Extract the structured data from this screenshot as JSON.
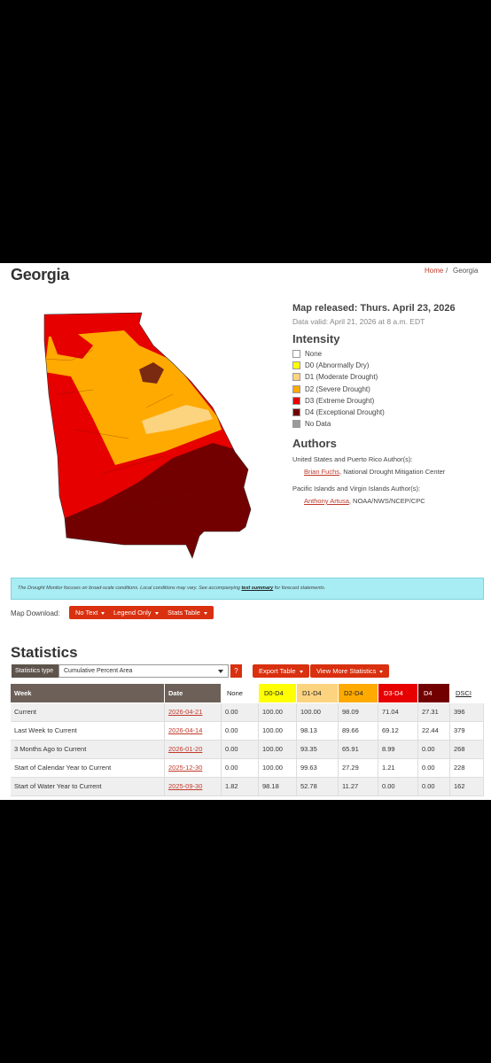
{
  "header": {
    "title": "Georgia",
    "breadcrumb": [
      "Home",
      "Georgia"
    ]
  },
  "map_info": {
    "released": "Map released: Thurs. April 23, 2026",
    "valid": "Data valid: April 21, 2026 at 8 a.m. EDT"
  },
  "legend": {
    "title": "Intensity",
    "items": [
      {
        "label": "None",
        "color": "#ffffff"
      },
      {
        "label": "D0 (Abnormally Dry)",
        "color": "#ffff00"
      },
      {
        "label": "D1 (Moderate Drought)",
        "color": "#fcd37f"
      },
      {
        "label": "D2 (Severe Drought)",
        "color": "#ffaa00"
      },
      {
        "label": "D3 (Extreme Drought)",
        "color": "#e60000"
      },
      {
        "label": "D4 (Exceptional Drought)",
        "color": "#730000"
      },
      {
        "label": "No Data",
        "color": "#9b9b9b"
      }
    ]
  },
  "authors": {
    "title": "Authors",
    "groups": [
      {
        "heading": "United States and Puerto Rico Author(s):",
        "name": "Brian Fuchs",
        "affiliation": ", National Drought Mitigation Center"
      },
      {
        "heading": "Pacific Islands and Virgin Islands Author(s):",
        "name": "Anthony Artusa",
        "affiliation": ", NOAA/NWS/NCEP/CPC"
      }
    ]
  },
  "notice": {
    "text": "The Drought Monitor focuses on broad-scale conditions. Local conditions may vary. See accompanying",
    "link": "text summary",
    "suffix": "for forecast statements."
  },
  "download": {
    "label": "Map Download:",
    "buttons": [
      "No Text",
      "Legend Only",
      "Stats Table"
    ]
  },
  "statistics": {
    "title": "Statistics",
    "type_label": "Statistics type",
    "type_value": "Cumulative Percent Area",
    "help": "?",
    "buttons": [
      "Export Table",
      "View More Statistics"
    ],
    "table": {
      "columns": [
        {
          "label": "Week",
          "color": "#6d6058"
        },
        {
          "label": "Date",
          "color": "#6d6058"
        },
        {
          "label": "None",
          "color": "#ffffff"
        },
        {
          "label": "D0-D4",
          "color": "#ffff00"
        },
        {
          "label": "D1-D4",
          "color": "#fcd37f"
        },
        {
          "label": "D2-D4",
          "color": "#ffaa00"
        },
        {
          "label": "D3-D4",
          "color": "#e60000"
        },
        {
          "label": "D4",
          "color": "#730000"
        },
        {
          "label": "DSCI",
          "color": "#ffffff"
        }
      ],
      "rows": [
        [
          "Current",
          "2026-04-21",
          "0.00",
          "100.00",
          "100.00",
          "98.09",
          "71.04",
          "27.31",
          "396"
        ],
        [
          "Last Week to Current",
          "2026-04-14",
          "0.00",
          "100.00",
          "98.13",
          "89.66",
          "69.12",
          "22.44",
          "379"
        ],
        [
          "3 Months Ago to Current",
          "2026-01-20",
          "0.00",
          "100.00",
          "93.35",
          "65.91",
          "8.99",
          "0.00",
          "268"
        ],
        [
          "Start of Calendar Year to Current",
          "2025-12-30",
          "0.00",
          "100.00",
          "99.63",
          "27.29",
          "1.21",
          "0.00",
          "228"
        ],
        [
          "Start of Water Year to Current",
          "2025-09-30",
          "1.82",
          "98.18",
          "52.78",
          "11.27",
          "0.00",
          "0.00",
          "162"
        ]
      ]
    }
  }
}
